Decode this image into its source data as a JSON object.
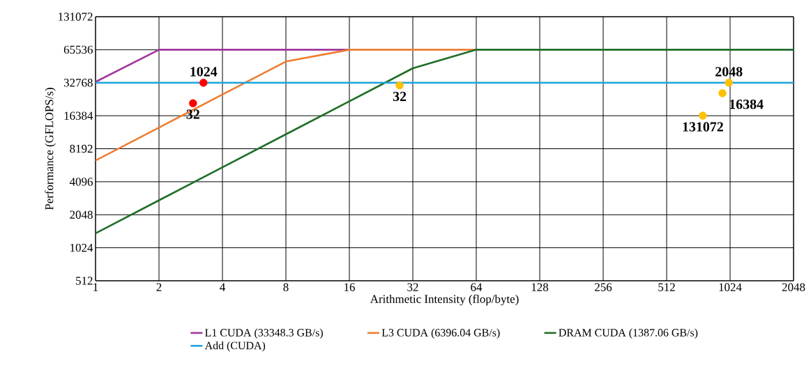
{
  "chart_data": {
    "type": "line",
    "xlabel": "Arithmetic Intensity (flop/byte)",
    "ylabel": "Performance (GFLOPS/s)",
    "log": "xy",
    "grid": true,
    "legend": "bottom",
    "xlim": [
      1,
      2048
    ],
    "ylim": [
      512,
      131072
    ],
    "xticks": [
      1,
      2,
      4,
      8,
      16,
      32,
      64,
      128,
      256,
      512,
      1024,
      2048
    ],
    "yticks": [
      512,
      1024,
      2048,
      4096,
      8192,
      16384,
      32768,
      65536,
      131072
    ],
    "series": [
      {
        "name": "L1 CUDA (33348.3 GB/s)",
        "color": "#a0379e",
        "x": [
          1,
          2,
          16
        ],
        "values": [
          33348,
          65536,
          65536
        ]
      },
      {
        "name": "L3 CUDA (6396.04 GB/s)",
        "color": "#ed7d31",
        "x": [
          1,
          2,
          4,
          8,
          16,
          64
        ],
        "values": [
          6396,
          12792,
          25584,
          51168,
          65536,
          65536
        ]
      },
      {
        "name": "DRAM CUDA (1387.06 GB/s)",
        "color": "#1e6e28",
        "x": [
          1,
          2,
          4,
          8,
          16,
          32,
          64,
          2048
        ],
        "values": [
          1387,
          2774,
          5548,
          11097,
          22193,
          44386,
          65536,
          65536
        ]
      },
      {
        "name": "Add (CUDA)",
        "color": "#1ea3dc",
        "x": [
          1,
          2048
        ],
        "values": [
          32768,
          32768
        ]
      },
      {
        "type": "scatter",
        "marker": "circle",
        "color": "#ff0000",
        "x": [
          2.9,
          3.25
        ],
        "values": [
          21300,
          32768
        ]
      },
      {
        "type": "scatter",
        "marker": "circle",
        "color": "#ffc000",
        "x": [
          27.7,
          760,
          942,
          1010
        ],
        "values": [
          31000,
          16384,
          26300,
          32768
        ]
      }
    ],
    "annotations": [
      {
        "text": "32",
        "x": 2.9,
        "y": 21300
      },
      {
        "text": "1024",
        "x": 3.25,
        "y": 32768
      },
      {
        "text": "32",
        "x": 27.7,
        "y": 31000
      },
      {
        "text": "131072",
        "x": 760,
        "y": 16384
      },
      {
        "text": "16384",
        "x": 942,
        "y": 26300
      },
      {
        "text": "2048",
        "x": 1010,
        "y": 32768
      }
    ]
  }
}
